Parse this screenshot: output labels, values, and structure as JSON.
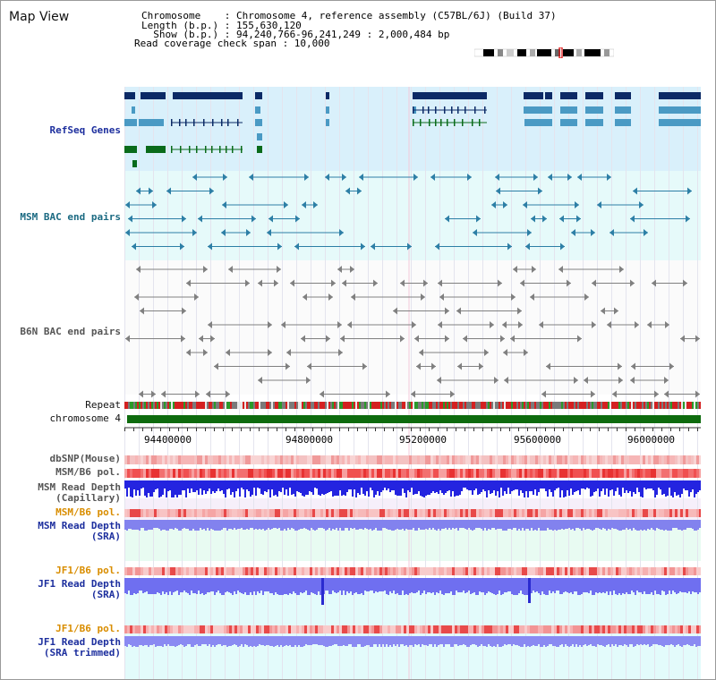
{
  "title": "Map View",
  "header": {
    "line1": "Chromosome    : Chromosome 4, reference assembly (C57BL/6J) (Build 37)",
    "line2": "Length (b.p.) : 155,630,120",
    "line3": "  Show (b.p.) : 94,240,766-96,241,249 : 2,000,484 bp",
    "line4": "Read coverage check span : 10,000"
  },
  "tracks": {
    "refseq": "RefSeq Genes",
    "msm_bac": "MSM BAC end pairs",
    "b6n_bac": "B6N BAC end pairs",
    "repeat": "Repeat",
    "chromosome": "chromosome 4",
    "dbsnp": "dbSNP(Mouse)",
    "msm_b6_pol_1": "MSM/B6 pol.",
    "msm_depth_cap_1": "MSM Read Depth",
    "msm_depth_cap_2": "(Capillary)",
    "msm_b6_pol_2": "MSM/B6 pol.",
    "msm_depth_sra_1": "MSM Read Depth",
    "msm_depth_sra_2": "(SRA)",
    "jf1_b6_pol_1": "JF1/B6 pol.",
    "jf1_depth_sra_1": "JF1 Read Depth",
    "jf1_depth_sra_2": "(SRA)",
    "jf1_b6_pol_2": "JF1/B6 pol.",
    "jf1_depth_trim_1": "JF1 Read Depth",
    "jf1_depth_trim_2": "(SRA trimmed)"
  },
  "scale": {
    "ticks": [
      "94400000",
      "94800000",
      "95200000",
      "95600000",
      "96000000"
    ]
  },
  "colors": {
    "refseq_bg": "#d9f0fb",
    "bac_bg": "#e6fafa",
    "msm_track_bg": "#e8fbf2",
    "jf1_track_bg": "#e3fbfb",
    "label_blue": "#1d2f9e",
    "label_teal": "#1b6a82",
    "label_gray": "#555555",
    "label_orange": "#d98d00",
    "gene_dark": "#0c2a66",
    "gene_mid": "#4a9ac4",
    "gene_green": "#0a6b1a",
    "chromosome_green": "#0e6b0e",
    "depth_blue": "#2424e0",
    "depth_light": "#8282ee"
  }
}
